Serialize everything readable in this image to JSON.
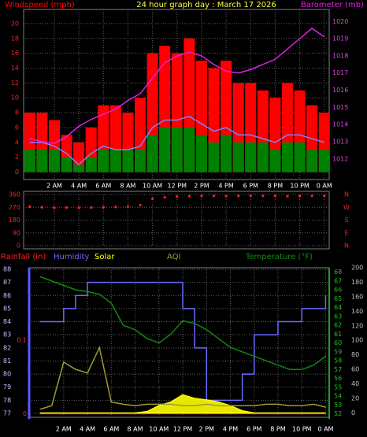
{
  "chart_data": [
    {
      "type": "line",
      "title": "24 hour graph day : March 17 2026",
      "x": [
        0,
        1,
        2,
        3,
        4,
        5,
        6,
        7,
        8,
        9,
        10,
        11,
        12,
        13,
        14,
        15,
        16,
        17,
        18,
        19,
        20,
        21,
        22,
        23,
        24
      ],
      "xlim": [
        -0.5,
        24.4
      ],
      "xticks": [
        {
          "value": 2,
          "label": "2 AM"
        },
        {
          "value": 4,
          "label": "4 AM"
        },
        {
          "value": 6,
          "label": "6 AM"
        },
        {
          "value": 8,
          "label": "8 AM"
        },
        {
          "value": 10,
          "label": "10 AM"
        },
        {
          "value": 12,
          "label": "12 PM"
        },
        {
          "value": 14,
          "label": "2 PM"
        },
        {
          "value": 16,
          "label": "4 PM"
        },
        {
          "value": 18,
          "label": "6 PM"
        },
        {
          "value": 20,
          "label": "8 PM"
        },
        {
          "value": 22,
          "label": "10 PM"
        },
        {
          "value": 24,
          "label": "0 AM"
        }
      ],
      "ylim": [
        -1,
        21.9
      ],
      "yticks": [
        0,
        2,
        4,
        6,
        8,
        10,
        12,
        14,
        16,
        18,
        20
      ],
      "ycolor": "#ff2020",
      "y2lim": [
        1010.8,
        1020.7
      ],
      "y2ticks": [
        1012,
        1013,
        1014,
        1015,
        1016,
        1017,
        1018,
        1019,
        1020
      ],
      "y2color": "#e040e0",
      "grid": true,
      "series": [
        {
          "name": "Windspeed (mph)",
          "color": "#ff0000",
          "style": "bar",
          "values": [
            8,
            8,
            7,
            5,
            4,
            6,
            9,
            9,
            8,
            10,
            16,
            17,
            16,
            18,
            15,
            14,
            15,
            12,
            12,
            11,
            10,
            12,
            11,
            9,
            8
          ]
        },
        {
          "color": "#008000",
          "style": "bar",
          "values": [
            3,
            3,
            3,
            2,
            1,
            2,
            3,
            3,
            3,
            3,
            5,
            6,
            6,
            6,
            5,
            4,
            5,
            4,
            4,
            4,
            3,
            4,
            4,
            3,
            3
          ]
        },
        {
          "color": "#8080ff",
          "style": "line",
          "values": [
            4,
            4,
            3.5,
            2.5,
            1,
            2.5,
            3.5,
            3,
            3,
            3.5,
            6,
            7,
            7,
            7.5,
            6.5,
            5.5,
            6,
            5,
            5,
            4.5,
            4,
            5,
            5,
            4.5,
            4
          ]
        },
        {
          "name": "Barometer (mb)",
          "color": "#e020e0",
          "style": "line",
          "axis": "y2",
          "values": [
            1013.2,
            1013.0,
            1012.9,
            1013.3,
            1013.9,
            1014.3,
            1014.6,
            1014.9,
            1015.4,
            1015.8,
            1016.7,
            1017.6,
            1018.0,
            1018.2,
            1018.0,
            1017.5,
            1017.1,
            1017.0,
            1017.2,
            1017.5,
            1017.8,
            1018.4,
            1019.0,
            1019.6,
            1019.1
          ]
        }
      ]
    },
    {
      "type": "scatter",
      "x": [
        0,
        1,
        2,
        3,
        4,
        5,
        6,
        7,
        8,
        9,
        10,
        11,
        12,
        13,
        14,
        15,
        16,
        17,
        18,
        19,
        20,
        21,
        22,
        23,
        24
      ],
      "xlim": [
        -0.5,
        24.4
      ],
      "xticks": [
        2,
        4,
        6,
        8,
        10,
        12,
        14,
        16,
        18,
        20,
        22,
        24
      ],
      "ylim": [
        0,
        360
      ],
      "yticks": [
        360,
        270,
        180,
        90,
        0
      ],
      "ycolor": "#ff2020",
      "y2lim": [
        0,
        360
      ],
      "y2ticks": [
        {
          "value": 360,
          "label": "N"
        },
        {
          "value": 270,
          "label": "W"
        },
        {
          "value": 180,
          "label": "S"
        },
        {
          "value": 90,
          "label": "E"
        },
        {
          "value": 0,
          "label": "N"
        }
      ],
      "y2color": "#ff2020",
      "grid": true,
      "series": [
        {
          "color": "#ff2020",
          "style": "dots",
          "values": [
            275,
            270,
            268,
            268,
            268,
            268,
            270,
            272,
            275,
            285,
            330,
            340,
            345,
            348,
            350,
            350,
            348,
            350,
            352,
            350,
            350,
            348,
            350,
            350,
            352
          ]
        }
      ]
    },
    {
      "type": "line",
      "x": [
        0,
        1,
        2,
        3,
        4,
        5,
        6,
        7,
        8,
        9,
        10,
        11,
        12,
        13,
        14,
        15,
        16,
        17,
        18,
        19,
        20,
        21,
        22,
        23,
        24
      ],
      "xlim": [
        -0.9,
        24.3
      ],
      "xticks": [
        {
          "value": 2,
          "label": "2 AM"
        },
        {
          "value": 4,
          "label": "4 AM"
        },
        {
          "value": 6,
          "label": "6 AM"
        },
        {
          "value": 8,
          "label": "8 AM"
        },
        {
          "value": 10,
          "label": "10 AM"
        },
        {
          "value": 12,
          "label": "12 PM"
        },
        {
          "value": 14,
          "label": "2 PM"
        },
        {
          "value": 16,
          "label": "4 PM"
        },
        {
          "value": 18,
          "label": "6 PM"
        },
        {
          "value": 20,
          "label": "8 PM"
        },
        {
          "value": 22,
          "label": "10 PM"
        },
        {
          "value": 24,
          "label": "0 AM"
        }
      ],
      "ylim": [
        76.7,
        88.12
      ],
      "yticks": [
        77,
        78,
        79,
        80,
        81,
        82,
        83,
        84,
        85,
        86,
        87,
        88
      ],
      "ycolor": "#c0c0ff",
      "y2lim": [
        51.6,
        68.5
      ],
      "y2ticks": [
        52,
        53,
        54,
        55,
        56,
        57,
        58,
        59,
        60,
        61,
        62,
        63,
        64,
        65,
        66,
        67,
        68
      ],
      "y2color": "#20c020",
      "y3lim": [
        -6,
        200
      ],
      "y3ticks": [
        0,
        20,
        40,
        60,
        80,
        100,
        120,
        140,
        160,
        180,
        200
      ],
      "y3color": "#c0c0c0",
      "y4lim": [
        -0.005,
        0.199
      ],
      "y4ticks": [
        0,
        0.1
      ],
      "y4color": "#ff2020",
      "grid": true,
      "series": [
        {
          "name": "Rainfall (in)",
          "color": "#ff2020",
          "style": "line",
          "axis": "y4",
          "values": [
            0,
            0,
            0,
            0,
            0,
            0,
            0,
            0,
            0,
            0,
            0,
            0,
            0,
            0,
            0,
            0,
            0,
            0,
            0,
            0,
            0,
            0,
            0,
            0,
            0
          ]
        },
        {
          "name": "Humidity",
          "color": "#6b6bff",
          "style": "step",
          "values": [
            84,
            84,
            85,
            86,
            87,
            87,
            87,
            87,
            87,
            87,
            87,
            87,
            85,
            82,
            78,
            78,
            78,
            80,
            83,
            83,
            84,
            84,
            85,
            85,
            86
          ]
        },
        {
          "name": "Solar",
          "color": "#ffff00",
          "style": "area",
          "axis": "y3",
          "values": [
            0,
            0,
            0,
            0,
            0,
            0,
            0,
            0,
            0,
            2,
            10,
            15,
            25,
            20,
            18,
            15,
            10,
            3,
            0,
            0,
            0,
            0,
            0,
            0,
            0
          ]
        },
        {
          "name": "AQI",
          "color": "#a09a30",
          "style": "line",
          "axis": "y3",
          "values": [
            5,
            10,
            70,
            60,
            55,
            90,
            15,
            12,
            10,
            12,
            12,
            12,
            10,
            10,
            12,
            10,
            10,
            10,
            10,
            12,
            12,
            10,
            10,
            12,
            8
          ]
        },
        {
          "name": "Temperature (°F)",
          "color": "#108a10",
          "style": "line",
          "axis": "y2",
          "values": [
            67.5,
            67,
            66.5,
            66,
            65.8,
            65.5,
            64.5,
            62,
            61.5,
            60.5,
            60,
            61,
            62.5,
            62.2,
            61.5,
            60.5,
            59.5,
            59,
            58.5,
            58,
            57.5,
            57,
            57,
            57.5,
            58.5
          ]
        }
      ]
    }
  ]
}
